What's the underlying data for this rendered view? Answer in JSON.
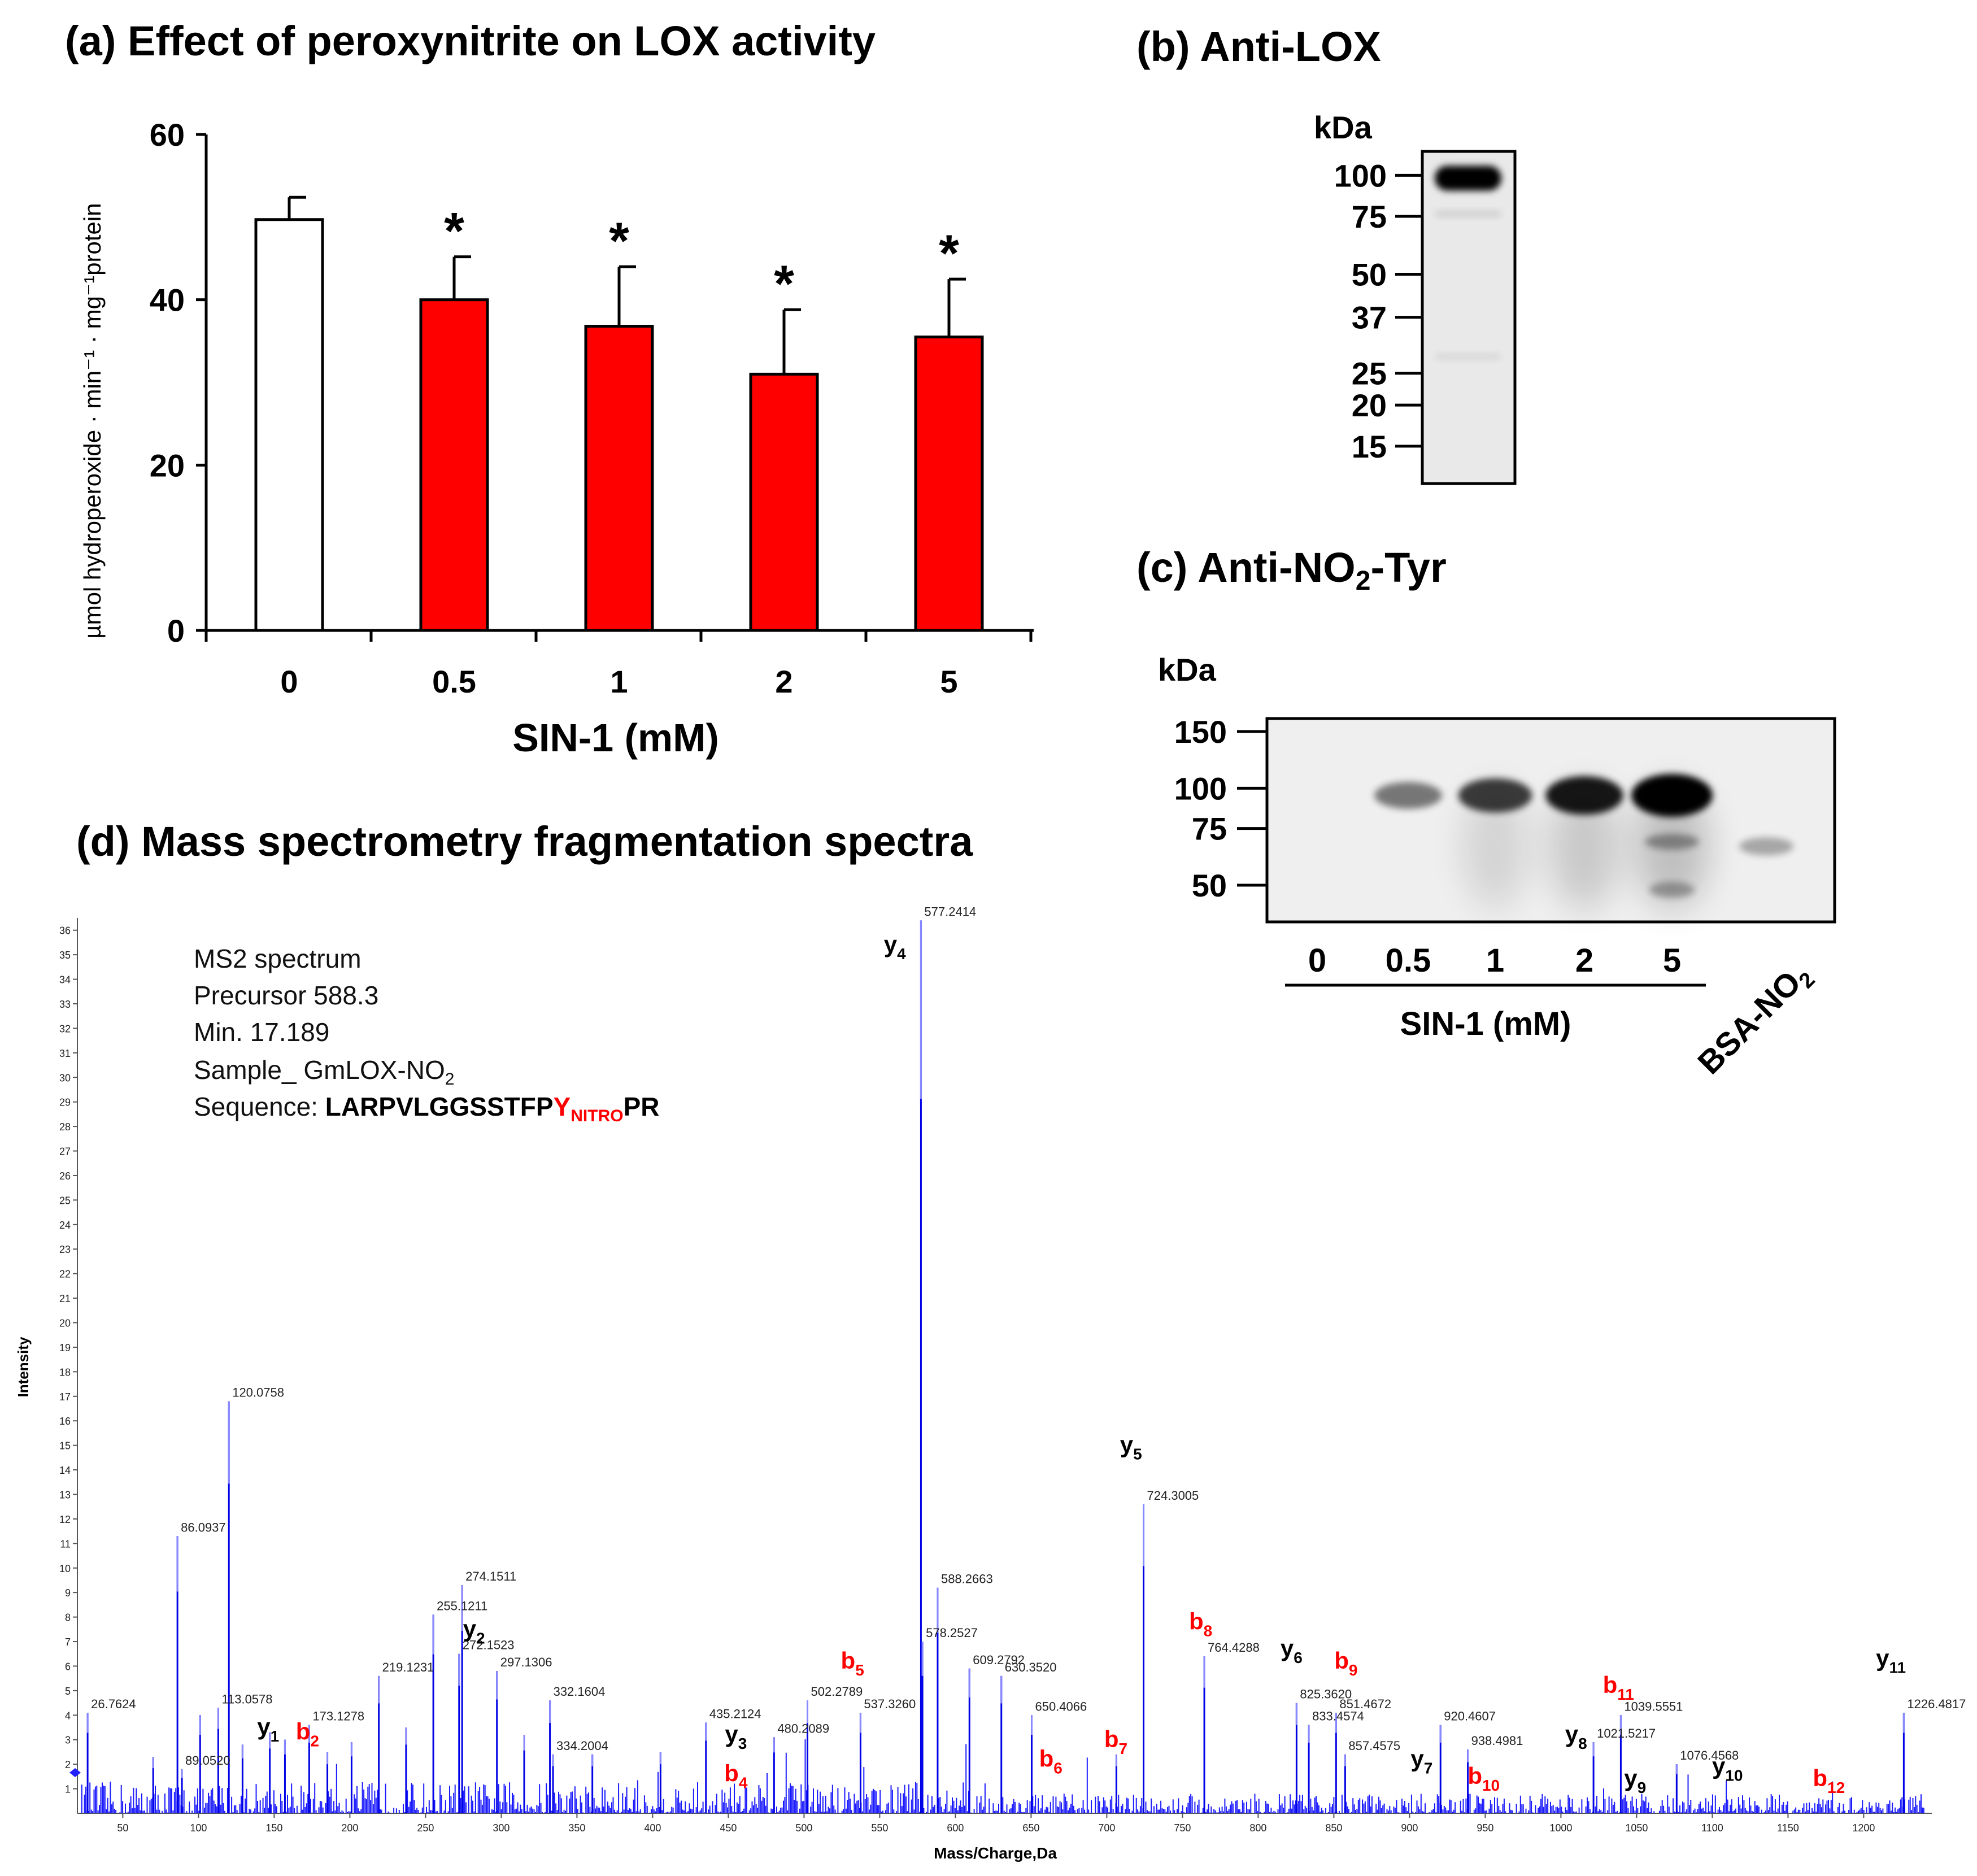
{
  "chart_data": [
    {
      "id": "a",
      "type": "bar",
      "title": "(a) Effect of peroxynitrite on LOX activity",
      "xlabel": "SIN-1 (mM)",
      "ylabel": "µmol hydroperoxide · min⁻¹ · mg⁻¹protein",
      "categories": [
        "0",
        "0.5",
        "1",
        "2",
        "5"
      ],
      "values": [
        49.7,
        40.0,
        36.8,
        31.0,
        35.5
      ],
      "error": [
        2.7,
        5.2,
        7.2,
        7.8,
        7.0
      ],
      "significance": [
        "",
        "*",
        "*",
        "*",
        "*"
      ],
      "bar_colors": [
        "#ffffff",
        "#ff0000",
        "#ff0000",
        "#ff0000",
        "#ff0000"
      ],
      "ylim": [
        0,
        60
      ],
      "yticks": [
        "0",
        "20",
        "40",
        "60"
      ]
    },
    {
      "id": "b",
      "type": "blot",
      "title": "(b) Anti-LOX",
      "unit_label": "kDa",
      "markers": [
        "100",
        "75",
        "50",
        "37",
        "25",
        "20",
        "15"
      ],
      "marker_values": [
        100,
        75,
        50,
        37,
        25,
        20,
        15
      ],
      "bands": [
        {
          "kda": 98,
          "intensity": 1.0
        },
        {
          "kda": 76,
          "intensity": 0.12
        },
        {
          "kda": 28,
          "intensity": 0.08
        }
      ]
    },
    {
      "id": "c",
      "type": "blot",
      "title_pre": "(c) Anti-NO",
      "title_sub": "2",
      "title_post": "-Tyr",
      "unit_label": "kDa",
      "markers": [
        "150",
        "100",
        "75",
        "50"
      ],
      "marker_values": [
        150,
        100,
        75,
        50
      ],
      "lanes": [
        "0",
        "0.5",
        "1",
        "2",
        "5"
      ],
      "lane_group_label": "SIN-1 (mM)",
      "extra_lane_pre": "BSA-NO",
      "extra_lane_sub": "2",
      "band_intensity": [
        0.0,
        0.45,
        0.7,
        0.85,
        1.0,
        0.3
      ]
    },
    {
      "id": "d",
      "type": "spectrum",
      "title": "(d) Mass spectrometry fragmentation spectra",
      "xlabel": "Mass/Charge,Da",
      "ylabel": "Intensity",
      "xlim": [
        20,
        1245
      ],
      "ylim": [
        0,
        36.5
      ],
      "xticks": [
        "50",
        "100",
        "150",
        "200",
        "250",
        "300",
        "350",
        "400",
        "450",
        "500",
        "550",
        "600",
        "650",
        "700",
        "750",
        "800",
        "850",
        "900",
        "950",
        "1000",
        "1050",
        "1100",
        "1150",
        "1200"
      ],
      "yticks": [
        "1",
        "2",
        "3",
        "4",
        "5",
        "6",
        "7",
        "8",
        "9",
        "10",
        "11",
        "12",
        "13",
        "14",
        "15",
        "16",
        "17",
        "18",
        "19",
        "20",
        "21",
        "22",
        "23",
        "24",
        "25",
        "26",
        "27",
        "28",
        "29",
        "30",
        "31",
        "32",
        "33",
        "34",
        "35",
        "36"
      ],
      "info": {
        "line1": "MS2 spectrum",
        "line2": "Precursor 588.3",
        "line3": "Min. 17.189",
        "line4_pre": "Sample_ GmLOX-NO",
        "line4_sub": "2",
        "seq_label": "Sequence: ",
        "seq_main": "LARPVLGGSSTFP",
        "seq_y": "Y",
        "seq_sub": "NITRO",
        "seq_end": "PR"
      },
      "peaks": [
        {
          "mz": 26.7624,
          "intensity": 4.1,
          "label": "26.7624"
        },
        {
          "mz": 70.07,
          "intensity": 2.3,
          "label": ""
        },
        {
          "mz": 86.0937,
          "intensity": 11.3,
          "label": "86.0937"
        },
        {
          "mz": 89.052,
          "intensity": 1.8,
          "label": "89.0520"
        },
        {
          "mz": 101.07,
          "intensity": 4.0,
          "label": ""
        },
        {
          "mz": 113.0578,
          "intensity": 4.3,
          "label": "113.0578"
        },
        {
          "mz": 120.0758,
          "intensity": 16.8,
          "label": "120.0758"
        },
        {
          "mz": 129.1,
          "intensity": 2.8,
          "label": ""
        },
        {
          "mz": 147.11,
          "intensity": 3.3,
          "label": ""
        },
        {
          "mz": 157.1,
          "intensity": 3.0,
          "label": ""
        },
        {
          "mz": 173.1278,
          "intensity": 3.6,
          "label": "173.1278"
        },
        {
          "mz": 185.13,
          "intensity": 2.5,
          "label": ""
        },
        {
          "mz": 201.12,
          "intensity": 2.9,
          "label": ""
        },
        {
          "mz": 219.1231,
          "intensity": 5.6,
          "label": "219.1231"
        },
        {
          "mz": 237.13,
          "intensity": 3.5,
          "label": ""
        },
        {
          "mz": 255.1211,
          "intensity": 8.1,
          "label": "255.1211"
        },
        {
          "mz": 272.1523,
          "intensity": 6.5,
          "label": "272.1523"
        },
        {
          "mz": 274.1511,
          "intensity": 9.3,
          "label": "274.1511"
        },
        {
          "mz": 297.1306,
          "intensity": 5.8,
          "label": "297.1306"
        },
        {
          "mz": 315.15,
          "intensity": 3.2,
          "label": ""
        },
        {
          "mz": 332.1604,
          "intensity": 4.6,
          "label": "332.1604"
        },
        {
          "mz": 334.2004,
          "intensity": 2.4,
          "label": "334.2004"
        },
        {
          "mz": 360.18,
          "intensity": 2.4,
          "label": ""
        },
        {
          "mz": 405.21,
          "intensity": 2.5,
          "label": ""
        },
        {
          "mz": 435.2124,
          "intensity": 3.7,
          "label": "435.2124"
        },
        {
          "mz": 480.2089,
          "intensity": 3.1,
          "label": "480.2089"
        },
        {
          "mz": 502.2789,
          "intensity": 4.6,
          "label": "502.2789"
        },
        {
          "mz": 537.326,
          "intensity": 4.1,
          "label": "537.3260"
        },
        {
          "mz": 577.2414,
          "intensity": 36.4,
          "label": "577.2414"
        },
        {
          "mz": 578.2527,
          "intensity": 7.0,
          "label": "578.2527"
        },
        {
          "mz": 588.2663,
          "intensity": 9.2,
          "label": "588.2663"
        },
        {
          "mz": 609.2792,
          "intensity": 5.9,
          "label": "609.2792"
        },
        {
          "mz": 630.352,
          "intensity": 5.6,
          "label": "630.3520"
        },
        {
          "mz": 650.4066,
          "intensity": 4.0,
          "label": "650.4066"
        },
        {
          "mz": 706.34,
          "intensity": 2.4,
          "label": ""
        },
        {
          "mz": 724.3005,
          "intensity": 12.6,
          "label": "724.3005"
        },
        {
          "mz": 764.4288,
          "intensity": 6.4,
          "label": "764.4288"
        },
        {
          "mz": 825.362,
          "intensity": 4.5,
          "label": "825.3620"
        },
        {
          "mz": 833.4574,
          "intensity": 3.6,
          "label": "833.4574"
        },
        {
          "mz": 851.4672,
          "intensity": 4.1,
          "label": "851.4672"
        },
        {
          "mz": 857.4575,
          "intensity": 2.4,
          "label": "857.4575"
        },
        {
          "mz": 920.4607,
          "intensity": 3.6,
          "label": "920.4607"
        },
        {
          "mz": 938.4981,
          "intensity": 2.6,
          "label": "938.4981"
        },
        {
          "mz": 1021.5217,
          "intensity": 2.9,
          "label": "1021.5217"
        },
        {
          "mz": 1039.5551,
          "intensity": 4.0,
          "label": "1039.5551"
        },
        {
          "mz": 1076.4568,
          "intensity": 2.0,
          "label": "1076.4568"
        },
        {
          "mz": 1226.4817,
          "intensity": 4.1,
          "label": "1226.4817"
        }
      ],
      "ion_labels": [
        {
          "base": "y",
          "sub": "1",
          "color": "#000000",
          "mz": 146,
          "level": 3.2
        },
        {
          "base": "b",
          "sub": "2",
          "color": "#ff0000",
          "mz": 172,
          "level": 3.0
        },
        {
          "base": "y",
          "sub": "2",
          "color": "#000000",
          "mz": 282,
          "level": 7.2
        },
        {
          "base": "y",
          "sub": "3",
          "color": "#000000",
          "mz": 455,
          "level": 2.9
        },
        {
          "base": "b",
          "sub": "4",
          "color": "#ff0000",
          "mz": 455,
          "level": 1.3
        },
        {
          "base": "b",
          "sub": "5",
          "color": "#ff0000",
          "mz": 532,
          "level": 5.9
        },
        {
          "base": "y",
          "sub": "4",
          "color": "#000000",
          "mz": 560,
          "level": 35.1
        },
        {
          "base": "y",
          "sub": "5",
          "color": "#000000",
          "mz": 716,
          "level": 14.7
        },
        {
          "base": "b",
          "sub": "8",
          "color": "#ff0000",
          "mz": 762,
          "level": 7.5
        },
        {
          "base": "y",
          "sub": "6",
          "color": "#000000",
          "mz": 822,
          "level": 6.4
        },
        {
          "base": "b",
          "sub": "9",
          "color": "#ff0000",
          "mz": 858,
          "level": 5.9
        },
        {
          "base": "b",
          "sub": "6",
          "color": "#ff0000",
          "mz": 663,
          "level": 1.9
        },
        {
          "base": "b",
          "sub": "7",
          "color": "#ff0000",
          "mz": 706,
          "level": 2.7
        },
        {
          "base": "y",
          "sub": "7",
          "color": "#000000",
          "mz": 908,
          "level": 1.9
        },
        {
          "base": "b",
          "sub": "10",
          "color": "#ff0000",
          "mz": 949,
          "level": 1.2
        },
        {
          "base": "y",
          "sub": "8",
          "color": "#000000",
          "mz": 1010,
          "level": 2.9
        },
        {
          "base": "b",
          "sub": "11",
          "color": "#ff0000",
          "mz": 1038,
          "level": 4.9
        },
        {
          "base": "y",
          "sub": "9",
          "color": "#000000",
          "mz": 1049,
          "level": 1.1
        },
        {
          "base": "y",
          "sub": "10",
          "color": "#000000",
          "mz": 1110,
          "level": 1.6
        },
        {
          "base": "b",
          "sub": "12",
          "color": "#ff0000",
          "mz": 1177,
          "level": 1.1
        },
        {
          "base": "y",
          "sub": "11",
          "color": "#000000",
          "mz": 1218,
          "level": 6.0
        }
      ]
    }
  ]
}
